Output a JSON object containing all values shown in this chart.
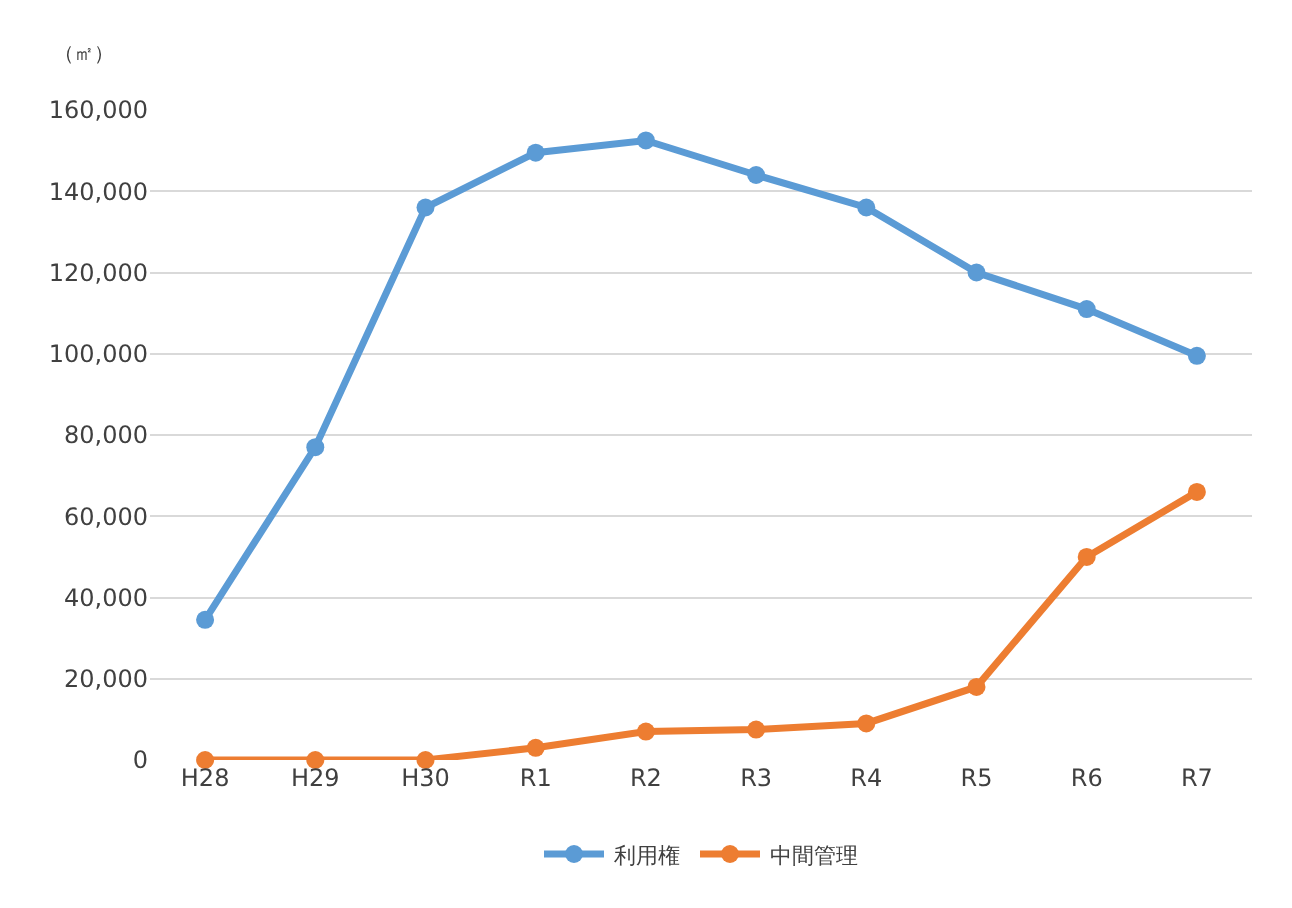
{
  "chart_data": {
    "type": "line",
    "ylabel": "（㎡）",
    "categories": [
      "H28",
      "H29",
      "H30",
      "R1",
      "R2",
      "R3",
      "R4",
      "R5",
      "R6",
      "R7"
    ],
    "series": [
      {
        "name": "利用権",
        "color": "#5b9bd5",
        "values": [
          34500,
          77000,
          136000,
          149500,
          152500,
          144000,
          136000,
          120000,
          111000,
          99500
        ]
      },
      {
        "name": "中間管理",
        "color": "#ed7d31",
        "values": [
          0,
          0,
          0,
          3000,
          7000,
          7500,
          9000,
          18000,
          50000,
          66000
        ]
      }
    ],
    "ylim": [
      0,
      160000
    ],
    "yticks": [
      {
        "value": 0,
        "label": "0"
      },
      {
        "value": 20000,
        "label": "20,000"
      },
      {
        "value": 40000,
        "label": "40,000"
      },
      {
        "value": 60000,
        "label": "60,000"
      },
      {
        "value": 80000,
        "label": "80,000"
      },
      {
        "value": 100000,
        "label": "100,000"
      },
      {
        "value": 120000,
        "label": "120,000"
      },
      {
        "value": 140000,
        "label": "140,000"
      },
      {
        "value": 160000,
        "label": "160,000"
      }
    ],
    "grid": "y",
    "legend": "bottom",
    "marker": "circle",
    "line_style": "solid"
  }
}
